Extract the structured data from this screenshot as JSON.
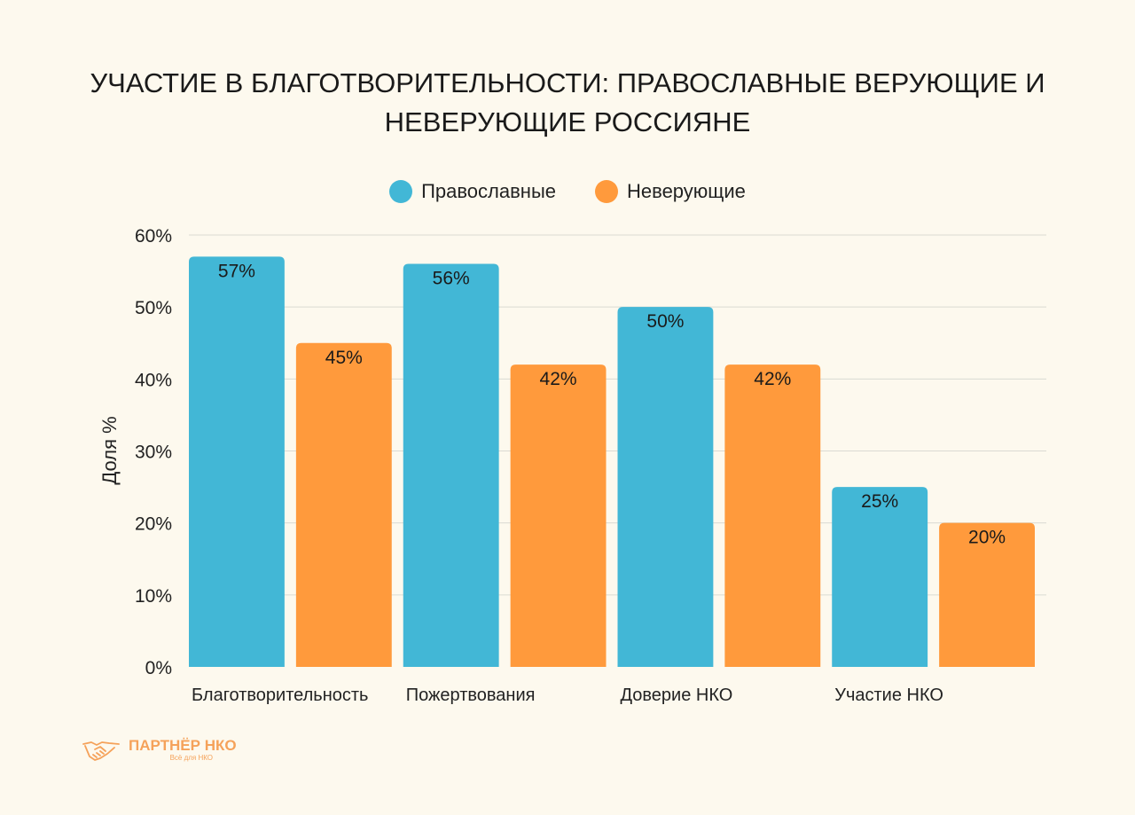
{
  "chart_data": {
    "type": "bar",
    "title_lines": [
      "УЧАСТИЕ В БЛАГОТВОРИТЕЛЬНОСТИ: ПРАВОСЛАВНЫЕ ВЕРУЮЩИЕ И",
      "НЕВЕРУЮЩИЕ РОССИЯНЕ"
    ],
    "xlabel": "",
    "ylabel": "Доля %",
    "ylim": [
      0,
      60
    ],
    "yticks": [
      0,
      10,
      20,
      30,
      40,
      50,
      60
    ],
    "ytick_labels": [
      "0%",
      "10%",
      "20%",
      "30%",
      "40%",
      "50%",
      "60%"
    ],
    "grid": true,
    "legend_position": "top-center",
    "categories": [
      "Благотворительность",
      "Пожертвования",
      "Доверие НКО",
      "Участие НКО"
    ],
    "series": [
      {
        "name": "Православные",
        "color": "#42B7D6",
        "values": [
          57,
          56,
          50,
          25
        ],
        "labels": [
          "57%",
          "56%",
          "50%",
          "25%"
        ]
      },
      {
        "name": "Неверующие",
        "color": "#FF9A3C",
        "values": [
          45,
          42,
          42,
          20
        ],
        "labels": [
          "45%",
          "42%",
          "42%",
          "20%"
        ]
      }
    ]
  },
  "logo": {
    "name": "ПАРТНЁР НКО",
    "tagline": "Всё для НКО",
    "icon": "handshake-icon",
    "color": "#F5A25A"
  }
}
